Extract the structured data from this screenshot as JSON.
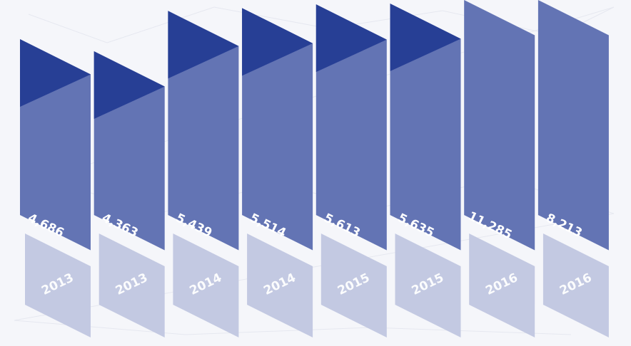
{
  "colors": {
    "bar": "#6374b4",
    "bar_cap": "#273f95",
    "year_tile": "#c3c9e2",
    "background": "#f5f6fa",
    "label": "#ffffff"
  },
  "chart_data": {
    "type": "bar",
    "categories": [
      "2013",
      "2013",
      "2014",
      "2014",
      "2015",
      "2015",
      "2016",
      "2016"
    ],
    "values": [
      4686,
      4363,
      5439,
      5514,
      5613,
      5635,
      11285,
      8213
    ],
    "value_labels": [
      "4,686",
      "4,363",
      "5,439",
      "5,514",
      "5,613",
      "5,635",
      "11,285",
      "8,213"
    ],
    "title": "",
    "xlabel": "",
    "ylabel": "",
    "grid": false,
    "legend": "none"
  }
}
